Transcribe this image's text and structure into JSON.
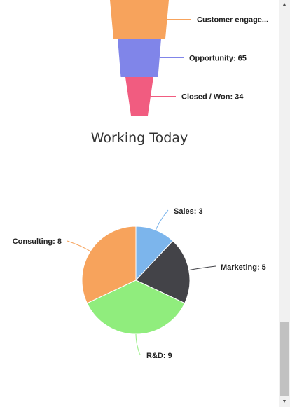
{
  "section_title": "Working Today",
  "chart_data": [
    {
      "type": "funnel",
      "title": "",
      "categories": [
        "Customer engage...",
        "Opportunity",
        "Closed / Won"
      ],
      "values": [
        null,
        65,
        34
      ],
      "labels": [
        "Customer engage...",
        "Opportunity: 65",
        "Closed / Won: 34"
      ],
      "colors": [
        "#f7a35c",
        "#8085e9",
        "#f15c80"
      ]
    },
    {
      "type": "pie",
      "title": "Working Today",
      "categories": [
        "Sales",
        "Marketing",
        "R&D",
        "Consulting"
      ],
      "values": [
        3,
        5,
        9,
        8
      ],
      "labels": [
        "Sales: 3",
        "Marketing: 5",
        "R&D: 9",
        "Consulting: 8"
      ],
      "colors": [
        "#7cb5ec",
        "#434348",
        "#90ed7d",
        "#f7a35c"
      ]
    }
  ],
  "scrollbar": {
    "up_icon": "triangle-up-icon",
    "down_icon": "triangle-down-icon"
  }
}
